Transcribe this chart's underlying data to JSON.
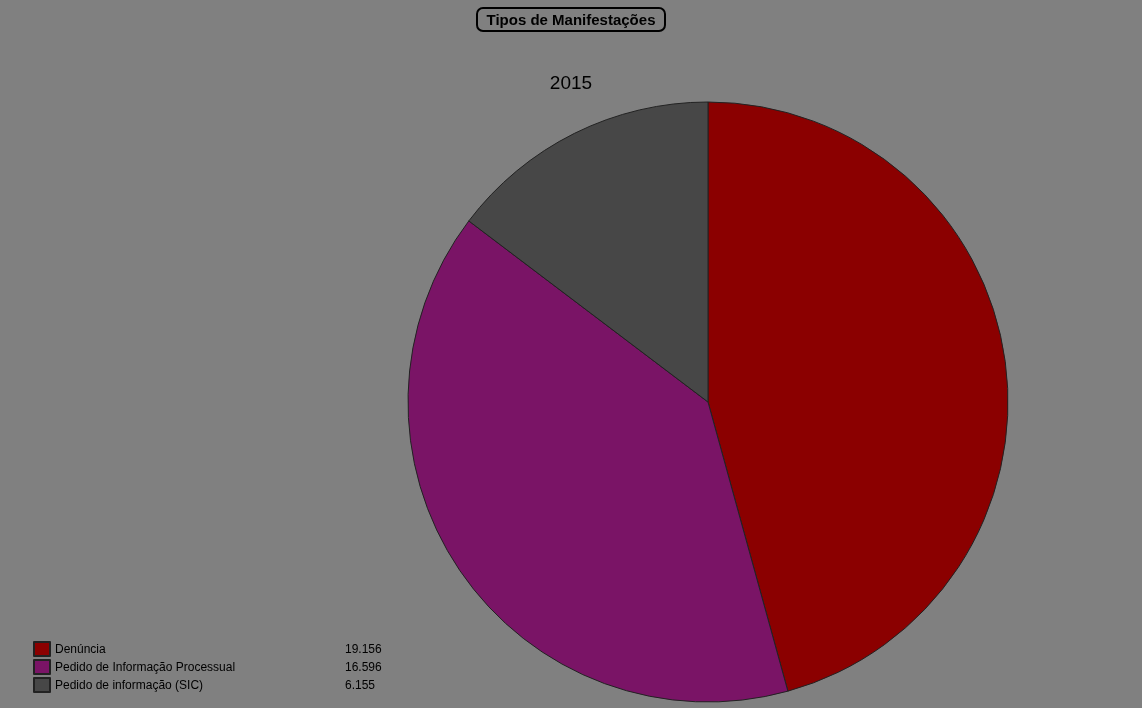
{
  "chart_data": {
    "type": "pie",
    "title": "Tipos de Manifestações",
    "subtitle": "2015",
    "categories": [
      "Denúncia",
      "Pedido de Informação Processual",
      "Pedido de informação (SIC)"
    ],
    "values": [
      19156,
      16596,
      6155
    ],
    "value_labels": [
      "19.156",
      "16.596",
      "6.155"
    ],
    "colors": [
      "#8b0000",
      "#7a1466",
      "#474747"
    ],
    "legend": "bottom left"
  }
}
